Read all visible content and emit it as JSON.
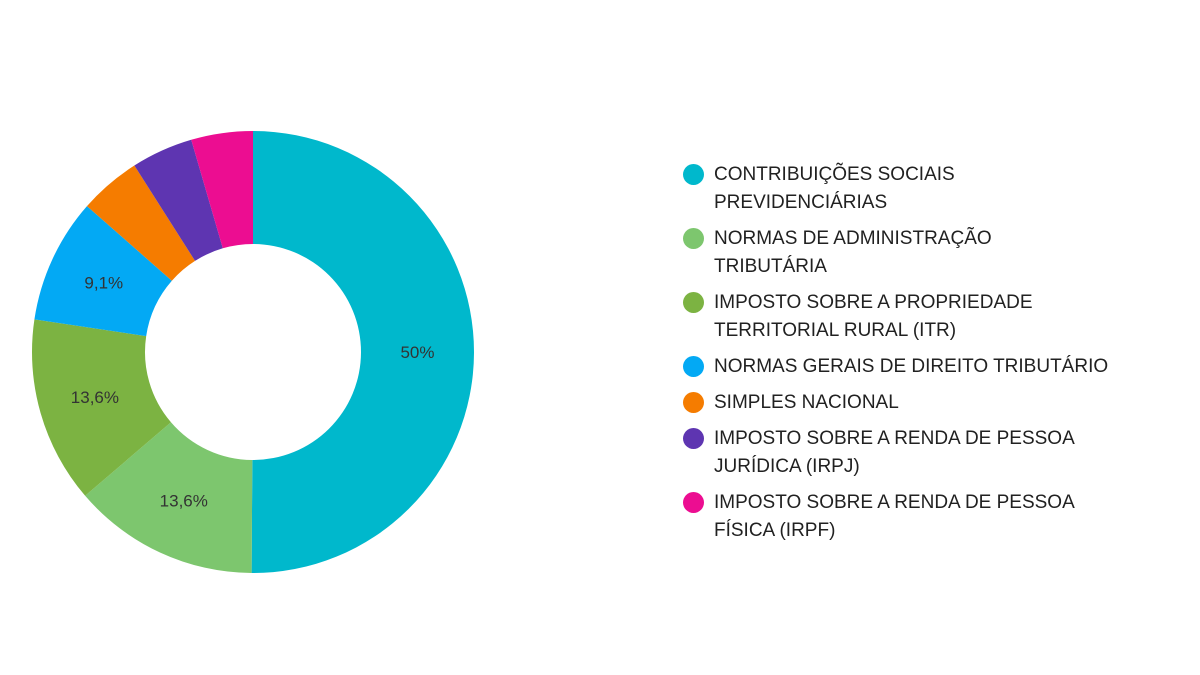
{
  "chart_data": {
    "type": "pie",
    "donut": true,
    "title": "",
    "legend_position": "right",
    "categories": [
      "CONTRIBUIÇÕES SOCIAIS PREVIDENCIÁRIAS",
      "NORMAS DE ADMINISTRAÇÃO TRIBUTÁRIA",
      "IMPOSTO SOBRE A PROPRIEDADE TERRITORIAL RURAL (ITR)",
      "NORMAS GERAIS DE DIREITO TRIBUTÁRIO",
      "SIMPLES NACIONAL",
      "IMPOSTO SOBRE A RENDA DE PESSOA JURÍDICA (IRPJ)",
      "IMPOSTO SOBRE A RENDA DE PESSOA FÍSICA (IRPF)"
    ],
    "legend_lines": [
      "CONTRIBUIÇÕES SOCIAIS\nPREVIDENCIÁRIAS",
      "NORMAS DE ADMINISTRAÇÃO\nTRIBUTÁRIA",
      "IMPOSTO SOBRE A PROPRIEDADE\nTERRITORIAL RURAL (ITR)",
      "NORMAS GERAIS DE DIREITO TRIBUTÁRIO",
      "SIMPLES NACIONAL",
      "IMPOSTO SOBRE A RENDA DE PESSOA\nJURÍDICA (IRPJ)",
      "IMPOSTO SOBRE A RENDA DE PESSOA\nFÍSICA (IRPF)"
    ],
    "values": [
      50,
      13.6,
      13.6,
      9.1,
      4.5,
      4.5,
      4.5
    ],
    "data_labels": [
      "50%",
      "13,6%",
      "13,6%",
      "9,1%",
      "",
      "",
      ""
    ],
    "colors": [
      "#00B8CC",
      "#7DC66E",
      "#7CB342",
      "#03A9F4",
      "#F57C00",
      "#5E35B1",
      "#EC0D91"
    ]
  }
}
